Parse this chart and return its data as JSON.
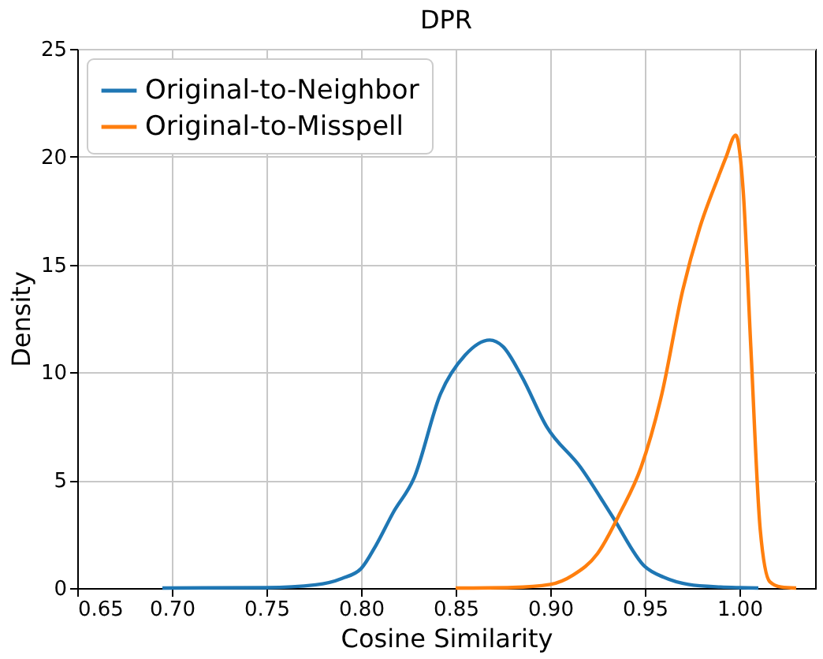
{
  "chart_data": {
    "type": "line",
    "title": "DPR",
    "xlabel": "Cosine Similarity",
    "ylabel": "Density",
    "xlim": [
      0.65,
      1.04
    ],
    "xticks": [
      0.65,
      {
        "value": 0.7,
        "label": "0.70"
      },
      0.75,
      {
        "value": 0.8,
        "label": "0.80"
      },
      0.85,
      {
        "value": 0.9,
        "label": "0.90"
      },
      0.95,
      {
        "value": 1.0,
        "label": "1.00"
      }
    ],
    "ylim": [
      0,
      25
    ],
    "yticks": [
      0,
      5,
      10,
      15,
      20,
      25
    ],
    "grid": true,
    "legend": "top left",
    "series": [
      {
        "name": "Original-to-Neighbor",
        "color": "#1f77b4",
        "x": [
          0.695,
          0.75,
          0.776,
          0.79,
          0.8,
          0.808,
          0.817,
          0.828,
          0.842,
          0.855,
          0.868,
          0.875,
          0.885,
          0.898,
          0.916,
          0.933,
          0.95,
          0.96,
          0.973,
          0.99,
          1.0,
          1.01
        ],
        "values": [
          0,
          0.02,
          0.15,
          0.45,
          0.9,
          2.0,
          3.5,
          5.1,
          9.0,
          10.8,
          11.5,
          11.2,
          9.8,
          7.5,
          5.6,
          3.3,
          1.0,
          0.5,
          0.17,
          0.05,
          0.02,
          0
        ]
      },
      {
        "name": "Original-to-Misspell",
        "color": "#ff7f0e",
        "x": [
          0.85,
          0.88,
          0.9,
          0.912,
          0.925,
          0.937,
          0.948,
          0.959,
          0.97,
          0.979,
          0.989,
          0.993,
          0.998,
          1.002,
          1.006,
          1.011,
          1.016,
          1.022,
          1.03
        ],
        "values": [
          0,
          0.03,
          0.17,
          0.6,
          1.6,
          3.5,
          5.6,
          9.0,
          13.8,
          16.7,
          19.1,
          20.0,
          21.0,
          18.4,
          11.2,
          2.7,
          0.3,
          0.05,
          0
        ]
      }
    ]
  }
}
